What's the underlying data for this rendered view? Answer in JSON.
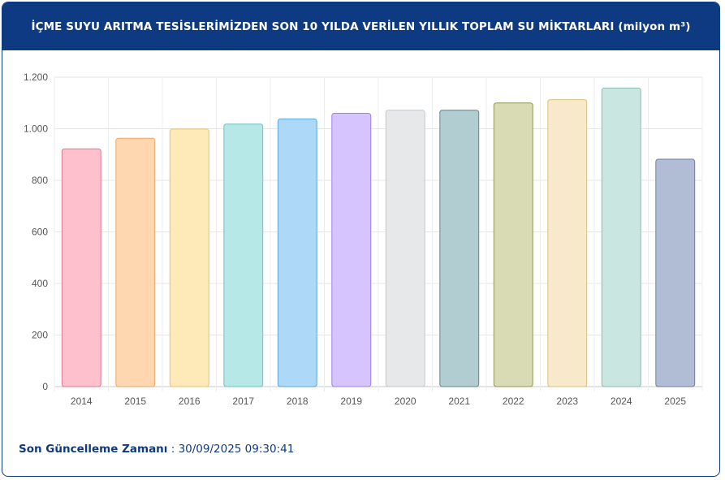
{
  "header": {
    "title": "İÇME SUYU ARITMA TESİSLERİMİZDEN SON 10 YILDA VERİLEN YILLIK TOPLAM SU MİKTARLARI (milyon m³)"
  },
  "footer": {
    "label": "Son Güncelleme Zamanı",
    "separator": " : ",
    "value": "30/09/2025 09:30:41"
  },
  "chart_data": {
    "type": "bar",
    "categories": [
      "2014",
      "2015",
      "2016",
      "2017",
      "2018",
      "2019",
      "2020",
      "2021",
      "2022",
      "2023",
      "2024",
      "2025"
    ],
    "values": [
      922,
      963,
      999,
      1018,
      1038,
      1060,
      1072,
      1072,
      1100,
      1113,
      1158,
      882
    ],
    "ylim": [
      0,
      1200
    ],
    "yticks": [
      0,
      200,
      400,
      600,
      800,
      1000,
      1200
    ],
    "ytick_labels": [
      "0",
      "200",
      "400",
      "600",
      "800",
      "1.000",
      "1.200"
    ],
    "grid": true,
    "fill_colors": [
      "#fdc0cc",
      "#fed7b0",
      "#feeab9",
      "#b5e8e6",
      "#aed8f8",
      "#d6c4fe",
      "#e7e8ea",
      "#b1cdd2",
      "#d8dbb3",
      "#f7e9c9",
      "#c9e6e0",
      "#b1bdd4"
    ],
    "stroke_colors": [
      "#e0788f",
      "#e8a669",
      "#e8c173",
      "#6cc5c2",
      "#5aa5df",
      "#a07ee8",
      "#c5c7cb",
      "#5f8a92",
      "#8f9a55",
      "#d9c07f",
      "#86bfb2",
      "#6d7fa6"
    ]
  }
}
